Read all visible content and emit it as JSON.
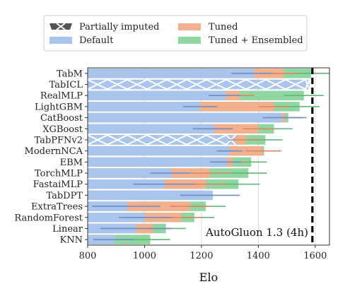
{
  "chart_data": {
    "type": "bar",
    "xlabel": "Elo",
    "xlim": [
      800,
      1650
    ],
    "xticks": [
      800,
      1000,
      1200,
      1400,
      1600
    ],
    "grid": "vertical",
    "legend_position": "top",
    "legend": [
      {
        "key": "imputed",
        "label": "Partially imputed",
        "color": "#555555"
      },
      {
        "key": "tuned",
        "label": "Tuned",
        "color": "#f3b08d"
      },
      {
        "key": "default",
        "label": "Default",
        "color": "#a9c5ec"
      },
      {
        "key": "ensembled",
        "label": "Tuned + Ensembled",
        "color": "#8fd6a0"
      }
    ],
    "reference_line": {
      "label": "AutoGluon 1.3 (4h)",
      "value": 1590
    },
    "categories": [
      "TabM",
      "TabICL",
      "RealMLP",
      "LightGBM",
      "CatBoost",
      "XGBoost",
      "TabPFNv2",
      "ModernNCA",
      "EBM",
      "TorchMLP",
      "FastaiMLP",
      "TabDPT",
      "ExtraTrees",
      "RandomForest",
      "Linear",
      "KNN"
    ],
    "series": [
      {
        "name": "Default",
        "values": [
          1385,
          1580,
          1285,
          1195,
          1485,
          1245,
          1320,
          1300,
          1290,
          1095,
          1070,
          1240,
          940,
          1000,
          970,
          895
        ],
        "err_low": [
          1305,
          null,
          1225,
          1135,
          1415,
          1170,
          null,
          1255,
          1230,
          1020,
          960,
          1125,
          815,
          910,
          845,
          820
        ],
        "err_high": [
          1450,
          null,
          1335,
          1255,
          1555,
          1310,
          null,
          1345,
          1340,
          1160,
          1175,
          1335,
          1055,
          1095,
          1095,
          960
        ]
      },
      {
        "name": "Tuned",
        "values": [
          1490,
          null,
          1335,
          1455,
          1495,
          1400,
          1355,
          1415,
          1310,
          1230,
          1215,
          null,
          1160,
          1130,
          1030,
          890
        ],
        "err_low": [
          1440,
          null,
          1290,
          1400,
          1430,
          1345,
          1295,
          1355,
          1265,
          1160,
          1140,
          null,
          1090,
          1060,
          965,
          820
        ],
        "err_high": [
          1540,
          null,
          1385,
          1510,
          1555,
          1455,
          1415,
          1480,
          1360,
          1305,
          1290,
          null,
          1230,
          1200,
          1100,
          960
        ]
      },
      {
        "name": "Tuned + Ensembled",
        "values": [
          1585,
          null,
          1560,
          1545,
          1505,
          1455,
          1425,
          1420,
          1375,
          1365,
          1330,
          null,
          1215,
          1175,
          1075,
          1020
        ],
        "err_low": [
          1515,
          null,
          1490,
          1480,
          1440,
          1395,
          1365,
          1360,
          1320,
          1300,
          1255,
          null,
          1150,
          1110,
          1010,
          950
        ],
        "err_high": [
          1655,
          null,
          1630,
          1615,
          1570,
          1520,
          1485,
          1480,
          1430,
          1430,
          1405,
          null,
          1285,
          1245,
          1145,
          1090
        ]
      }
    ],
    "partially_imputed": [
      "TabICL",
      "TabPFNv2"
    ]
  }
}
